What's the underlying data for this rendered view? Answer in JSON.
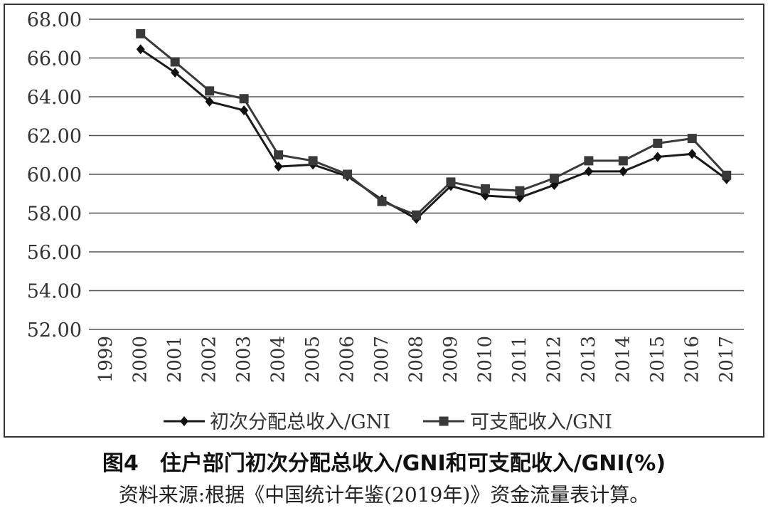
{
  "caption": {
    "title": "图4　住户部门初次分配总收入/GNI和可支配收入/GNI(%)",
    "source": "资料来源:根据《中国统计年鉴(2019年)》资金流量表计算。"
  },
  "chart_data": {
    "type": "line",
    "title": "",
    "xlabel": "",
    "ylabel": "",
    "ylim": [
      52,
      68
    ],
    "yticks": [
      "52.00",
      "54.00",
      "56.00",
      "58.00",
      "60.00",
      "62.00",
      "64.00",
      "66.00",
      "68.00"
    ],
    "categories": [
      "1999",
      "2000",
      "2001",
      "2002",
      "2003",
      "2004",
      "2005",
      "2006",
      "2007",
      "2008",
      "2009",
      "2010",
      "2011",
      "2012",
      "2013",
      "2014",
      "2015",
      "2016",
      "2017"
    ],
    "x": [
      "2000",
      "2001",
      "2002",
      "2003",
      "2004",
      "2005",
      "2006",
      "2007",
      "2008",
      "2009",
      "2010",
      "2011",
      "2012",
      "2013",
      "2014",
      "2015",
      "2016",
      "2017"
    ],
    "grid": true,
    "legend_position": "bottom",
    "series": [
      {
        "name": "初次分配总收入/GNI",
        "marker": "diamond",
        "values": [
          66.45,
          65.25,
          63.75,
          63.3,
          60.4,
          60.5,
          59.9,
          58.7,
          57.7,
          59.4,
          58.9,
          58.8,
          59.45,
          60.15,
          60.15,
          60.9,
          61.05,
          59.75
        ]
      },
      {
        "name": "可支配收入/GNI",
        "marker": "square",
        "values": [
          67.25,
          65.8,
          64.3,
          63.9,
          61.0,
          60.7,
          60.0,
          58.6,
          57.9,
          59.6,
          59.25,
          59.15,
          59.8,
          60.7,
          60.7,
          61.6,
          61.85,
          59.95
        ]
      }
    ]
  }
}
